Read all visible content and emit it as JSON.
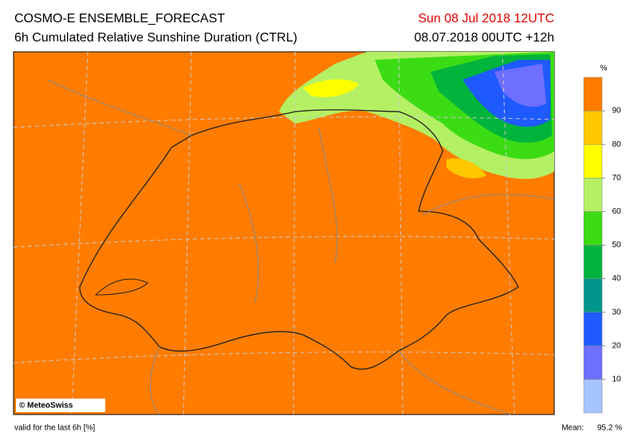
{
  "header": {
    "title": "COSMO-E ENSEMBLE_FORECAST",
    "subtitle": "6h Cumulated Relative Sunshine Duration (CTRL)",
    "valid_time": "Sun 08 Jul 2018 12UTC",
    "run": "08.07.2018 00UTC +12h"
  },
  "map": {
    "copyright": "© MeteoSwiss"
  },
  "colorbar": {
    "unit": "%",
    "range": [
      0,
      100
    ],
    "ticks": [
      10,
      20,
      30,
      40,
      50,
      60,
      70,
      80,
      90
    ],
    "colors": [
      "#a6c4ff",
      "#6e6eff",
      "#1e5aff",
      "#00968c",
      "#00b43c",
      "#3cdc14",
      "#b4f064",
      "#ffff00",
      "#ffc800",
      "#ff7c00"
    ]
  },
  "footer": {
    "note": "valid for the last 6h [%]",
    "mean_label": "Mean:",
    "mean_value": "95.2 %"
  }
}
